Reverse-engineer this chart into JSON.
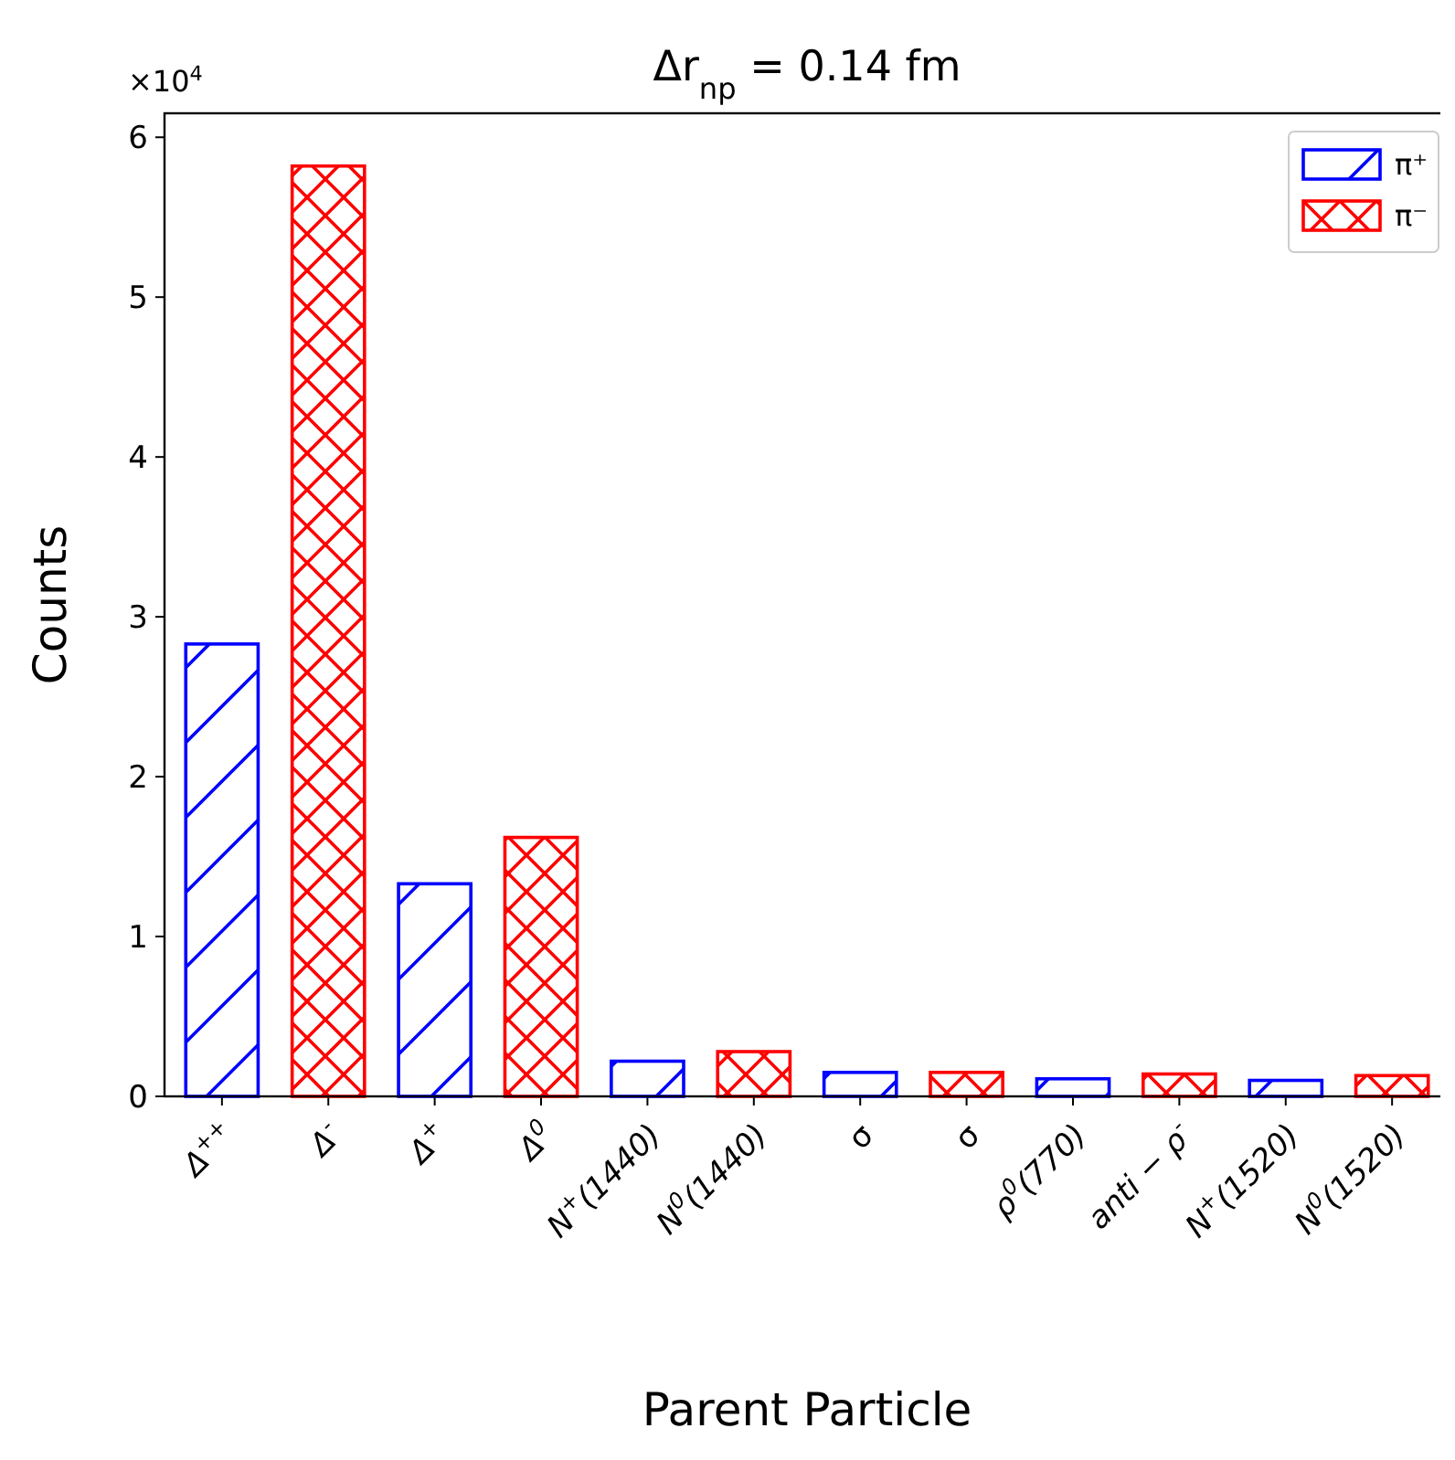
{
  "chart_data": {
    "type": "bar",
    "title": "Δr$_{np}$ = 0.14 fm",
    "xlabel": "Parent Particle",
    "ylabel": "Counts",
    "categories": [
      "Δ$^{++}$",
      "Δ$^{-}$",
      "Δ$^{+}$",
      "Δ$^{0}$",
      "N$^{+}$(1440)",
      "N$^{0}$(1440)",
      "σ",
      "σ",
      "ρ$^{0}$(770)",
      "anti − ρ$^{-}$",
      "N$^{+}$(1520)",
      "N$^{0}$(1520)"
    ],
    "series": [
      {
        "name": "π⁺",
        "color": "#0000ff",
        "values": [
          2.83,
          null,
          1.33,
          null,
          0.22,
          null,
          0.15,
          null,
          0.11,
          null,
          0.1,
          null
        ]
      },
      {
        "name": "π⁻",
        "color": "#ff0000",
        "values": [
          null,
          5.82,
          null,
          1.62,
          null,
          0.28,
          null,
          0.15,
          null,
          0.14,
          null,
          0.13
        ]
      }
    ],
    "ylim": [
      0,
      6.15
    ],
    "yticks": [
      0,
      1,
      2,
      3,
      4,
      5,
      6
    ],
    "annotations": [
      "×10$^{4}$"
    ],
    "legend": "top right",
    "grid": false
  }
}
